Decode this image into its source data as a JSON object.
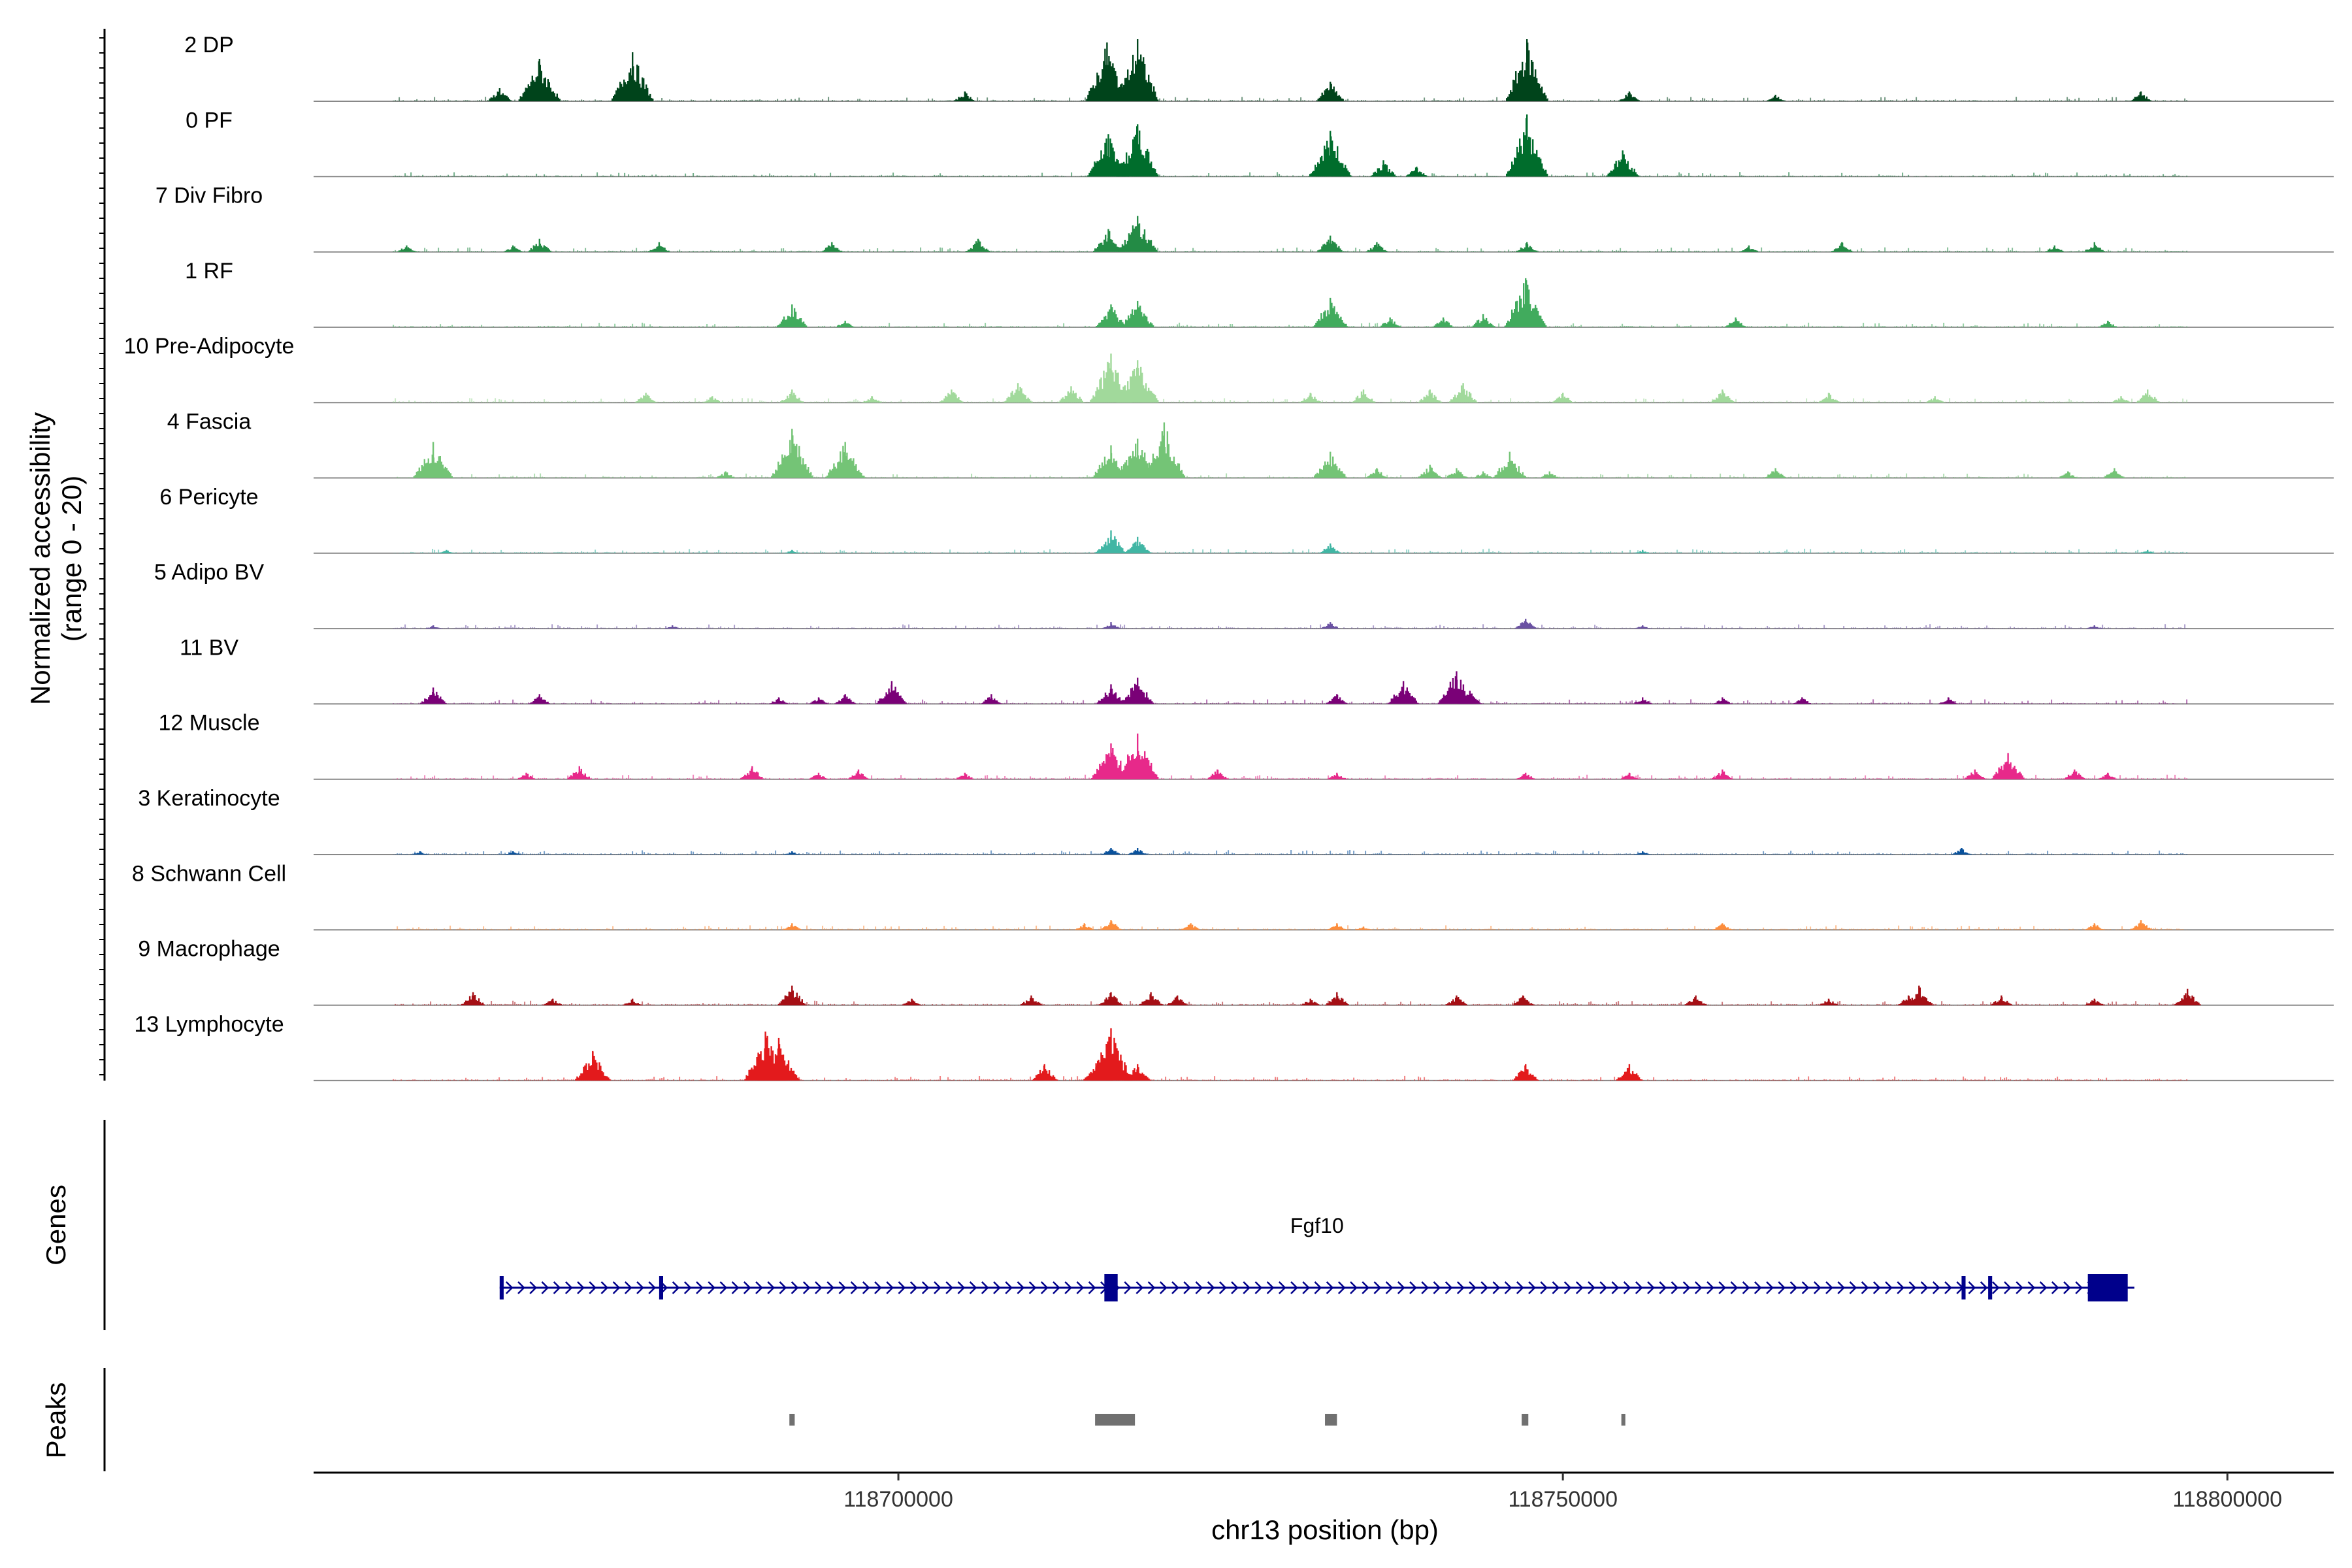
{
  "chart_data": {
    "type": "coverage-track",
    "y_axis_title_line1": "Normalized accessibility",
    "y_axis_title_line2": "(range 0 - 20)",
    "ylim": [
      0,
      20
    ],
    "xlabel": "chr13 position (bp)",
    "xlim": [
      118656000,
      118808000
    ],
    "x_ticks": [
      {
        "value": 118700000,
        "label": "118700000"
      },
      {
        "value": 118750000,
        "label": "118750000"
      },
      {
        "value": 118800000,
        "label": "118800000"
      }
    ],
    "tracks": [
      {
        "name": "2 DP",
        "color": "#00441b",
        "peaks": [
          [
            118670000,
            4
          ],
          [
            118673000,
            13
          ],
          [
            118680000,
            15
          ],
          [
            118705000,
            3
          ],
          [
            118715700,
            18
          ],
          [
            118718000,
            19
          ],
          [
            118732500,
            6
          ],
          [
            118747300,
            19
          ],
          [
            118755000,
            3
          ],
          [
            118766000,
            2
          ],
          [
            118793500,
            3
          ]
        ]
      },
      {
        "name": "0 PF",
        "color": "#006d2c",
        "peaks": [
          [
            118715800,
            13
          ],
          [
            118718000,
            16
          ],
          [
            118732500,
            14
          ],
          [
            118736500,
            5
          ],
          [
            118739000,
            3
          ],
          [
            118747300,
            19
          ],
          [
            118754500,
            8
          ]
        ]
      },
      {
        "name": "7 Div Fibro",
        "color": "#238b45",
        "peaks": [
          [
            118663000,
            2
          ],
          [
            118671000,
            2
          ],
          [
            118673000,
            4
          ],
          [
            118682000,
            3
          ],
          [
            118695000,
            3
          ],
          [
            118706000,
            4
          ],
          [
            118715800,
            7
          ],
          [
            118718000,
            11
          ],
          [
            118732500,
            5
          ],
          [
            118736000,
            3
          ],
          [
            118747300,
            3
          ],
          [
            118764000,
            2
          ],
          [
            118771000,
            3
          ],
          [
            118787000,
            2
          ],
          [
            118790000,
            3
          ]
        ]
      },
      {
        "name": "1 RF",
        "color": "#41ab5d",
        "peaks": [
          [
            118692000,
            7
          ],
          [
            118696000,
            2
          ],
          [
            118716000,
            7
          ],
          [
            118718000,
            8
          ],
          [
            118732500,
            9
          ],
          [
            118737000,
            3
          ],
          [
            118741000,
            3
          ],
          [
            118744000,
            4
          ],
          [
            118747200,
            15
          ],
          [
            118763000,
            3
          ],
          [
            118791000,
            2
          ]
        ]
      },
      {
        "name": "10 Pre-Adipocyte",
        "color": "#a1d99b",
        "peaks": [
          [
            118681000,
            3
          ],
          [
            118686000,
            2
          ],
          [
            118692000,
            4
          ],
          [
            118698000,
            2
          ],
          [
            118704000,
            4
          ],
          [
            118709000,
            6
          ],
          [
            118713000,
            5
          ],
          [
            118716000,
            15
          ],
          [
            118718000,
            13
          ],
          [
            118731000,
            3
          ],
          [
            118735000,
            4
          ],
          [
            118740000,
            4
          ],
          [
            118742500,
            6
          ],
          [
            118750000,
            3
          ],
          [
            118762000,
            4
          ],
          [
            118770000,
            3
          ],
          [
            118778000,
            2
          ],
          [
            118792000,
            2
          ],
          [
            118794000,
            4
          ]
        ]
      },
      {
        "name": "4 Fascia",
        "color": "#74c476",
        "peaks": [
          [
            118665000,
            11
          ],
          [
            118687000,
            2
          ],
          [
            118692000,
            15
          ],
          [
            118696000,
            11
          ],
          [
            118716000,
            10
          ],
          [
            118718000,
            12
          ],
          [
            118720000,
            17
          ],
          [
            118732500,
            8
          ],
          [
            118736000,
            3
          ],
          [
            118740000,
            4
          ],
          [
            118742000,
            3
          ],
          [
            118744000,
            2
          ],
          [
            118746000,
            8
          ],
          [
            118749000,
            2
          ],
          [
            118766000,
            3
          ],
          [
            118788000,
            2
          ],
          [
            118791500,
            3
          ]
        ]
      },
      {
        "name": "6 Pericyte",
        "color": "#41b6a4",
        "peaks": [
          [
            118666000,
            1
          ],
          [
            118692000,
            1
          ],
          [
            118716000,
            7
          ],
          [
            118718000,
            5
          ],
          [
            118732500,
            3
          ],
          [
            118756000,
            1
          ],
          [
            118794000,
            1
          ]
        ]
      },
      {
        "name": "5 Adipo BV",
        "color": "#6a51a3",
        "peaks": [
          [
            118665000,
            1
          ],
          [
            118683000,
            1
          ],
          [
            118716000,
            2
          ],
          [
            118732500,
            2
          ],
          [
            118747200,
            3
          ],
          [
            118756000,
            1
          ],
          [
            118790000,
            1
          ]
        ]
      },
      {
        "name": "11 BV",
        "color": "#7a0177",
        "peaks": [
          [
            118665000,
            5
          ],
          [
            118673000,
            3
          ],
          [
            118691000,
            2
          ],
          [
            118694000,
            2
          ],
          [
            118696000,
            3
          ],
          [
            118699500,
            7
          ],
          [
            118707000,
            3
          ],
          [
            118716000,
            6
          ],
          [
            118718000,
            8
          ],
          [
            118733000,
            3
          ],
          [
            118738000,
            7
          ],
          [
            118742000,
            10
          ],
          [
            118743000,
            4
          ],
          [
            118756000,
            2
          ],
          [
            118762000,
            2
          ],
          [
            118768000,
            2
          ],
          [
            118779000,
            2
          ]
        ]
      },
      {
        "name": "12 Muscle",
        "color": "#e7298a",
        "peaks": [
          [
            118672000,
            2
          ],
          [
            118676000,
            4
          ],
          [
            118689000,
            4
          ],
          [
            118694000,
            2
          ],
          [
            118697000,
            3
          ],
          [
            118705000,
            2
          ],
          [
            118716000,
            11
          ],
          [
            118718000,
            14
          ],
          [
            118724000,
            3
          ],
          [
            118733000,
            2
          ],
          [
            118747200,
            2
          ],
          [
            118755000,
            2
          ],
          [
            118762000,
            3
          ],
          [
            118781000,
            3
          ],
          [
            118783500,
            8
          ],
          [
            118788500,
            3
          ],
          [
            118791000,
            2
          ]
        ]
      },
      {
        "name": "3 Keratinocyte",
        "color": "#08519c",
        "peaks": [
          [
            118664000,
            1
          ],
          [
            118671000,
            1
          ],
          [
            118692000,
            1
          ],
          [
            118716000,
            2
          ],
          [
            118718000,
            2
          ],
          [
            118756000,
            1
          ],
          [
            118780000,
            2
          ]
        ]
      },
      {
        "name": "8 Schwann Cell",
        "color": "#fd8d3c",
        "peaks": [
          [
            118692000,
            2
          ],
          [
            118714000,
            2
          ],
          [
            118716000,
            3
          ],
          [
            118722000,
            2
          ],
          [
            118733000,
            2
          ],
          [
            118735000,
            1
          ],
          [
            118762000,
            2
          ],
          [
            118790000,
            2
          ],
          [
            118793500,
            3
          ]
        ]
      },
      {
        "name": "9 Macrophage",
        "color": "#a50f15",
        "peaks": [
          [
            118668000,
            4
          ],
          [
            118674000,
            2
          ],
          [
            118680000,
            2
          ],
          [
            118692000,
            6
          ],
          [
            118701000,
            2
          ],
          [
            118710000,
            3
          ],
          [
            118716000,
            4
          ],
          [
            118719000,
            4
          ],
          [
            118721000,
            3
          ],
          [
            118731000,
            2
          ],
          [
            118733000,
            4
          ],
          [
            118742000,
            3
          ],
          [
            118747000,
            3
          ],
          [
            118760000,
            3
          ],
          [
            118770000,
            2
          ],
          [
            118776000,
            3
          ],
          [
            118776800,
            6
          ],
          [
            118783000,
            3
          ],
          [
            118790000,
            2
          ],
          [
            118797000,
            5
          ]
        ]
      },
      {
        "name": "13 Lymphocyte",
        "color": "#e31a1c",
        "peaks": [
          [
            118677000,
            9
          ],
          [
            118690000,
            15
          ],
          [
            118691000,
            13
          ],
          [
            118711000,
            5
          ],
          [
            118715000,
            6
          ],
          [
            118716000,
            16
          ],
          [
            118718000,
            5
          ],
          [
            118747200,
            5
          ],
          [
            118755000,
            5
          ]
        ]
      }
    ],
    "genes": [
      {
        "name": "Fgf10",
        "start": 118670000,
        "end": 118793000,
        "strand": "+",
        "exons": [
          [
            118670000,
            118670300
          ],
          [
            118682000,
            118682300
          ],
          [
            118715500,
            118716500
          ],
          [
            118780000,
            118780300
          ],
          [
            118782000,
            118782300
          ],
          [
            118789500,
            118792500
          ]
        ]
      }
    ],
    "peak_regions": [
      [
        118691800,
        118692200
      ],
      [
        118714800,
        118717800
      ],
      [
        118732100,
        118733000
      ],
      [
        118746900,
        118747400
      ],
      [
        118754400,
        118754700
      ]
    ],
    "panel_titles": {
      "genes": "Genes",
      "peaks": "Peaks"
    }
  }
}
